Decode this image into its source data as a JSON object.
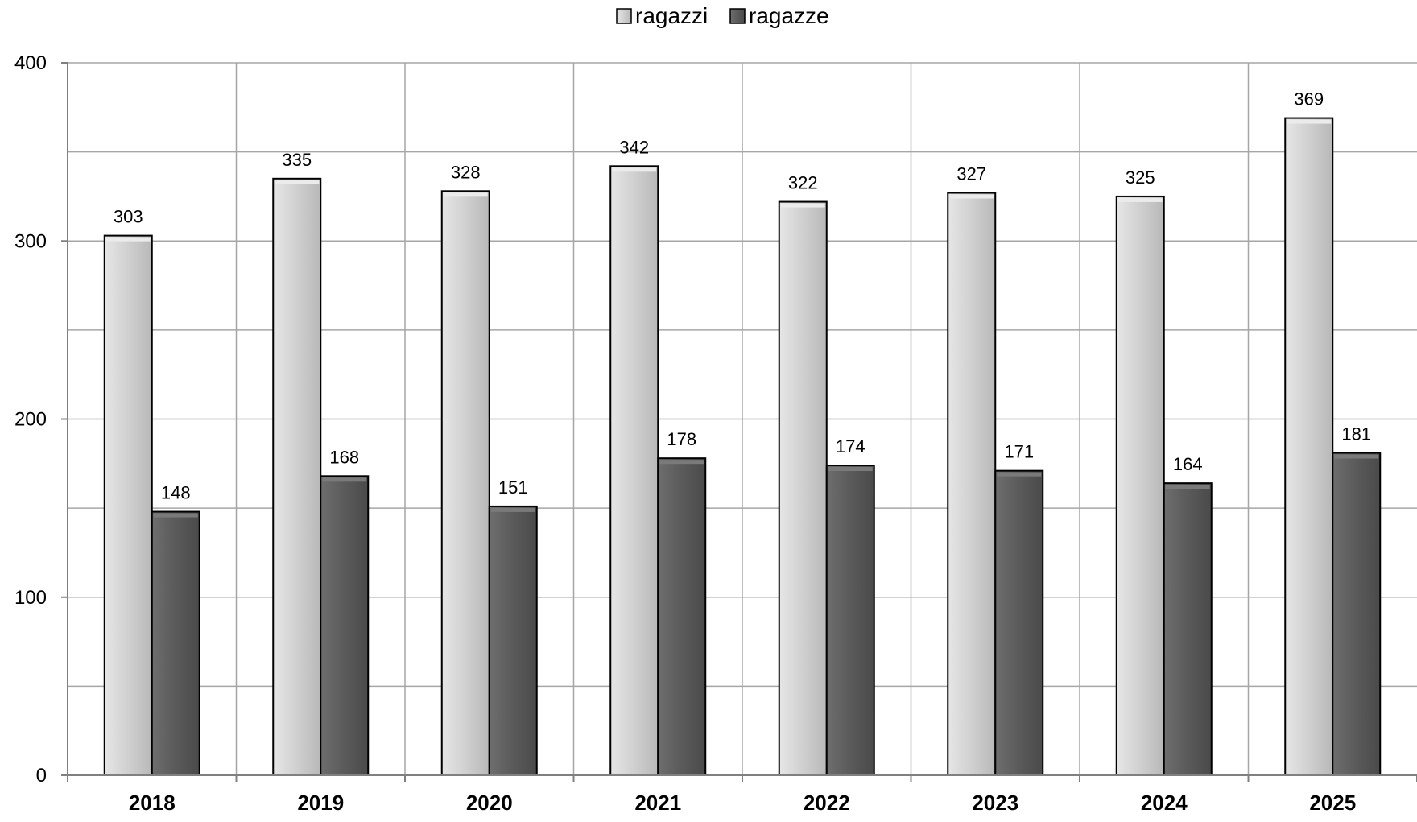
{
  "chart_data": {
    "type": "bar",
    "categories": [
      "2018",
      "2019",
      "2020",
      "2021",
      "2022",
      "2023",
      "2024",
      "2025"
    ],
    "series": [
      {
        "name": "ragazzi",
        "color": "#c8c8c8",
        "values": [
          303,
          335,
          328,
          342,
          322,
          327,
          325,
          369
        ]
      },
      {
        "name": "ragazze",
        "color": "#595959",
        "values": [
          148,
          168,
          151,
          178,
          174,
          171,
          164,
          181
        ]
      }
    ],
    "title": "",
    "xlabel": "",
    "ylabel": "",
    "ylim": [
      0,
      400
    ],
    "yticks": [
      0,
      100,
      200,
      300,
      400
    ],
    "minor_gridlines_every": 50,
    "grid": true,
    "legend_position": "top-center",
    "data_labels": true
  }
}
